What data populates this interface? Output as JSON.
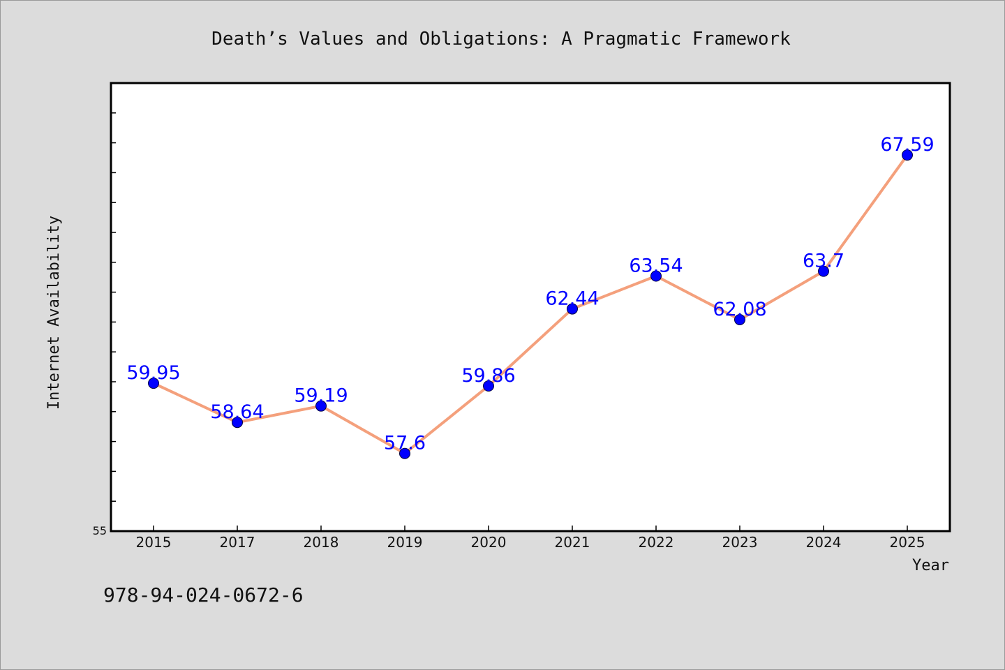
{
  "chart_data": {
    "type": "line",
    "title": "Death’s Values and Obligations: A Pragmatic Framework",
    "xlabel": "Year",
    "ylabel": "Internet Availability",
    "categories": [
      "2015",
      "2017",
      "2018",
      "2019",
      "2020",
      "2021",
      "2022",
      "2023",
      "2024",
      "2025"
    ],
    "series": [
      {
        "values": [
          59.95,
          58.64,
          59.19,
          57.6,
          59.86,
          62.44,
          63.54,
          62.08,
          63.7,
          67.59
        ],
        "data_labels": [
          "59.95",
          "58.64",
          "59.19",
          "57.6",
          "59.86",
          "62.44",
          "63.54",
          "62.08",
          "63.7",
          "67.59"
        ]
      }
    ],
    "ylim": [
      55,
      70
    ],
    "y_tick_label": "55",
    "grid": false,
    "colors": {
      "line": "#f4a07c",
      "marker": "#0000ff",
      "data_label": "#0000ff",
      "plot_background": "#ffffff",
      "page_background": "#dcdcdc"
    }
  },
  "footer": {
    "code": "978-94-024-0672-6"
  }
}
